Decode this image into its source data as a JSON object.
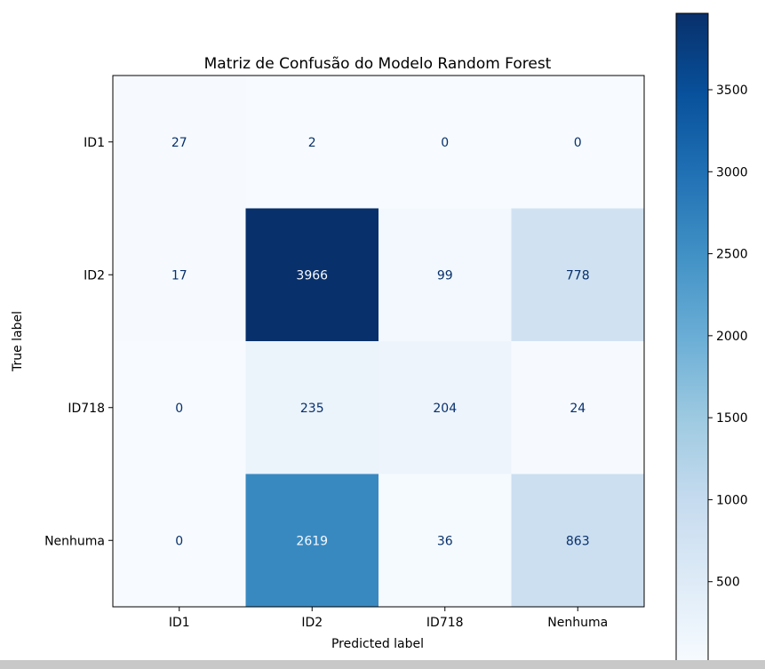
{
  "chart_data": {
    "type": "heatmap",
    "title": "Matriz de Confusão do Modelo Random Forest",
    "xlabel": "Predicted label",
    "ylabel": "True label",
    "x_categories": [
      "ID1",
      "ID2",
      "ID718",
      "Nenhuma"
    ],
    "y_categories": [
      "ID1",
      "ID2",
      "ID718",
      "Nenhuma"
    ],
    "matrix": [
      [
        27,
        2,
        0,
        0
      ],
      [
        17,
        3966,
        99,
        778
      ],
      [
        0,
        235,
        204,
        24
      ],
      [
        0,
        2619,
        36,
        863
      ]
    ],
    "colormap": "Blues",
    "vmin": 0,
    "vmax": 3966,
    "colorbar_ticks": [
      500,
      1000,
      1500,
      2000,
      2500,
      3000,
      3500
    ],
    "grid": false
  },
  "colors": {
    "cmap_low": "#f7fbff",
    "cmap_high": "#08306b",
    "text_on_light": "#08306b",
    "text_on_dark": "#f7fbff"
  }
}
